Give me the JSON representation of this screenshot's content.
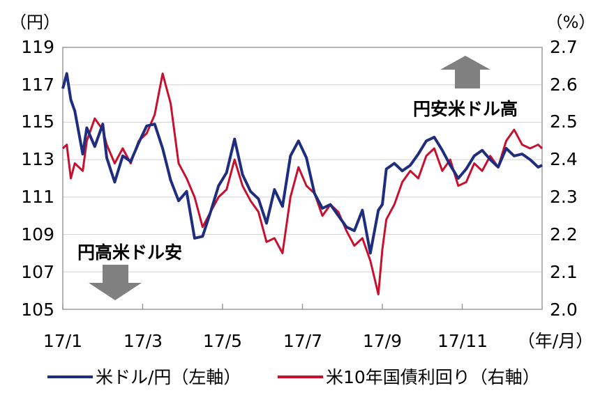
{
  "chart_data": {
    "type": "line",
    "left_unit": "（円）",
    "right_unit": "（%）",
    "x_unit": "（年/月）",
    "x_ticks": [
      "17/1",
      "17/3",
      "17/5",
      "17/7",
      "17/9",
      "17/11"
    ],
    "x_tick_positions": [
      1,
      3,
      5,
      7,
      9,
      11
    ],
    "xlim": [
      1,
      13
    ],
    "left_axis": {
      "ylim": [
        105,
        119
      ],
      "ticks": [
        "105",
        "107",
        "109",
        "111",
        "113",
        "115",
        "117",
        "119"
      ],
      "tick_values": [
        105,
        107,
        109,
        111,
        113,
        115,
        117,
        119
      ]
    },
    "right_axis": {
      "ylim": [
        2.0,
        2.7
      ],
      "ticks": [
        "2.0",
        "2.1",
        "2.2",
        "2.3",
        "2.4",
        "2.5",
        "2.6",
        "2.7"
      ],
      "tick_values": [
        2.0,
        2.1,
        2.2,
        2.3,
        2.4,
        2.5,
        2.6,
        2.7
      ]
    },
    "annotations": {
      "up": "円安米ドル高",
      "down": "円高米ドル安"
    },
    "series": [
      {
        "name": "米ドル/円（左軸）",
        "axis": "left",
        "color": "#1F2D7F",
        "x": [
          1.0,
          1.1,
          1.2,
          1.3,
          1.5,
          1.6,
          1.8,
          2.0,
          2.1,
          2.3,
          2.5,
          2.7,
          2.9,
          3.1,
          3.3,
          3.5,
          3.7,
          3.9,
          4.1,
          4.3,
          4.5,
          4.7,
          4.9,
          5.1,
          5.3,
          5.5,
          5.7,
          5.9,
          6.1,
          6.3,
          6.5,
          6.7,
          6.9,
          7.1,
          7.3,
          7.5,
          7.7,
          7.9,
          8.1,
          8.3,
          8.5,
          8.7,
          8.9,
          9.0,
          9.1,
          9.3,
          9.5,
          9.7,
          9.9,
          10.1,
          10.3,
          10.5,
          10.7,
          10.9,
          11.1,
          11.3,
          11.5,
          11.7,
          11.9,
          12.1,
          12.3,
          12.5,
          12.7,
          12.9,
          13.0
        ],
        "values": [
          116.8,
          117.6,
          116.2,
          115.6,
          113.3,
          114.7,
          113.7,
          114.9,
          113.1,
          111.8,
          113.2,
          112.9,
          113.9,
          114.8,
          114.9,
          113.6,
          111.9,
          110.8,
          111.3,
          108.8,
          108.9,
          110.2,
          111.6,
          112.3,
          114.1,
          112.2,
          111.3,
          110.9,
          109.6,
          111.4,
          110.5,
          113.2,
          114.0,
          113.1,
          111.2,
          110.4,
          110.6,
          110.0,
          109.4,
          109.2,
          110.3,
          108.0,
          110.3,
          110.6,
          112.5,
          112.8,
          112.4,
          112.7,
          113.3,
          114.0,
          114.2,
          113.5,
          112.7,
          112.0,
          112.5,
          113.2,
          113.5,
          113.0,
          112.6,
          113.6,
          113.2,
          113.3,
          113.0,
          112.6,
          112.7
        ]
      },
      {
        "name": "米10年国債利回り（右軸）",
        "axis": "right",
        "color": "#C8102E",
        "x": [
          1.0,
          1.1,
          1.2,
          1.3,
          1.5,
          1.6,
          1.8,
          2.0,
          2.1,
          2.3,
          2.5,
          2.7,
          2.9,
          3.1,
          3.3,
          3.5,
          3.7,
          3.9,
          4.1,
          4.3,
          4.5,
          4.7,
          4.9,
          5.1,
          5.3,
          5.5,
          5.7,
          5.9,
          6.1,
          6.3,
          6.5,
          6.7,
          6.9,
          7.1,
          7.3,
          7.5,
          7.7,
          7.9,
          8.1,
          8.3,
          8.5,
          8.7,
          8.9,
          9.0,
          9.1,
          9.3,
          9.5,
          9.7,
          9.9,
          10.1,
          10.3,
          10.5,
          10.7,
          10.9,
          11.1,
          11.3,
          11.5,
          11.7,
          11.9,
          12.1,
          12.3,
          12.5,
          12.7,
          12.9,
          13.0
        ],
        "values": [
          2.43,
          2.44,
          2.35,
          2.39,
          2.37,
          2.45,
          2.51,
          2.48,
          2.44,
          2.39,
          2.43,
          2.39,
          2.45,
          2.47,
          2.52,
          2.63,
          2.55,
          2.39,
          2.35,
          2.3,
          2.22,
          2.26,
          2.3,
          2.32,
          2.4,
          2.33,
          2.29,
          2.26,
          2.18,
          2.19,
          2.15,
          2.3,
          2.38,
          2.33,
          2.31,
          2.25,
          2.28,
          2.26,
          2.21,
          2.17,
          2.19,
          2.13,
          2.04,
          2.16,
          2.24,
          2.28,
          2.34,
          2.37,
          2.35,
          2.41,
          2.43,
          2.37,
          2.4,
          2.33,
          2.34,
          2.39,
          2.37,
          2.41,
          2.38,
          2.45,
          2.48,
          2.44,
          2.43,
          2.44,
          2.43
        ]
      }
    ]
  }
}
